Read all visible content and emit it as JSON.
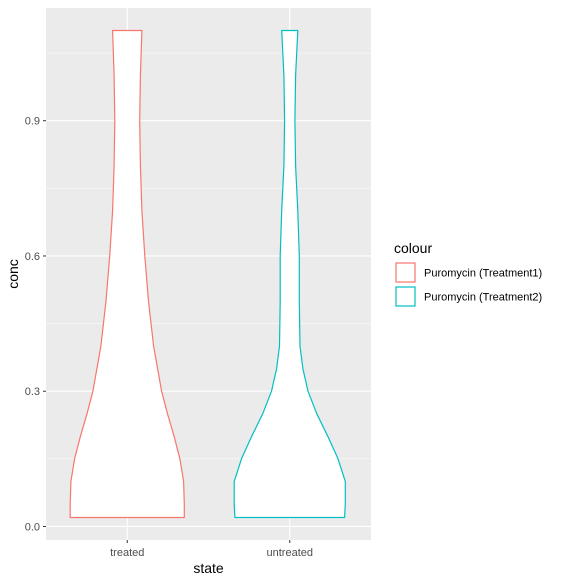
{
  "chart_data": {
    "type": "violin",
    "xlabel": "state",
    "ylabel": "conc",
    "categories": [
      "treated",
      "untreated"
    ],
    "ylim": [
      -0.03,
      1.15
    ],
    "y_ticks": [
      0.0,
      0.3,
      0.6,
      0.9
    ],
    "y_tick_labels": [
      "0.0",
      "0.3",
      "0.6",
      "0.9"
    ],
    "grid": true,
    "legend": {
      "title": "colour",
      "position": "right",
      "entries": [
        "Puromycin (Treatment1)",
        "Puromycin (Treatment2)"
      ]
    },
    "series": [
      {
        "name": "Puromycin (Treatment1)",
        "category": "treated",
        "color": "#F8766D",
        "y_range": [
          0.02,
          1.1
        ],
        "profile": [
          [
            0.02,
            0.78
          ],
          [
            0.05,
            0.78
          ],
          [
            0.1,
            0.77
          ],
          [
            0.15,
            0.72
          ],
          [
            0.2,
            0.64
          ],
          [
            0.25,
            0.55
          ],
          [
            0.3,
            0.47
          ],
          [
            0.4,
            0.36
          ],
          [
            0.5,
            0.29
          ],
          [
            0.6,
            0.24
          ],
          [
            0.7,
            0.2
          ],
          [
            0.8,
            0.18
          ],
          [
            0.9,
            0.17
          ],
          [
            1.0,
            0.18
          ],
          [
            1.1,
            0.2
          ]
        ]
      },
      {
        "name": "Puromycin (Treatment2)",
        "category": "untreated",
        "color": "#00BFC4",
        "y_range": [
          0.02,
          1.1
        ],
        "profile": [
          [
            0.02,
            0.75
          ],
          [
            0.05,
            0.76
          ],
          [
            0.1,
            0.76
          ],
          [
            0.15,
            0.66
          ],
          [
            0.2,
            0.52
          ],
          [
            0.25,
            0.37
          ],
          [
            0.3,
            0.25
          ],
          [
            0.35,
            0.18
          ],
          [
            0.4,
            0.14
          ],
          [
            0.5,
            0.13
          ],
          [
            0.6,
            0.13
          ],
          [
            0.7,
            0.11
          ],
          [
            0.8,
            0.08
          ],
          [
            0.9,
            0.07
          ],
          [
            1.0,
            0.08
          ],
          [
            1.1,
            0.11
          ]
        ]
      }
    ]
  }
}
